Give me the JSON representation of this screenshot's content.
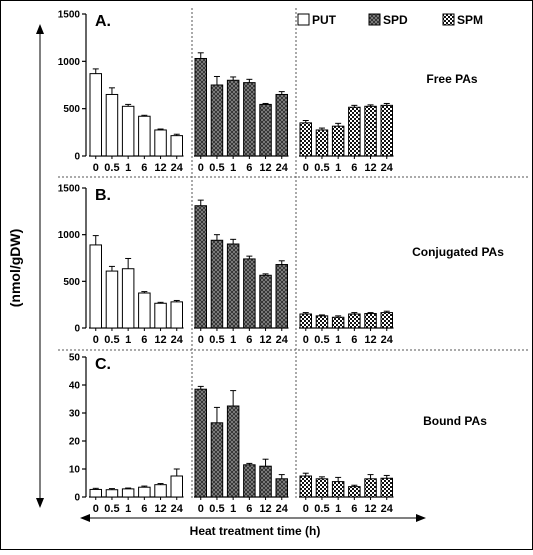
{
  "chart_data": {
    "type": "bar",
    "ylabel": "(nmol/gDW)",
    "xlabel": "Heat treatment time (h)",
    "categories": [
      "0",
      "0.5",
      "1",
      "6",
      "12",
      "24"
    ],
    "legend": {
      "placement": "top-right",
      "entries": [
        {
          "name": "PUT",
          "pattern": "white"
        },
        {
          "name": "SPD",
          "pattern": "grey-crosshatch"
        },
        {
          "name": "SPM",
          "pattern": "checkered"
        }
      ]
    },
    "panels": [
      {
        "letter": "A.",
        "label": "Free PAs",
        "ylim": [
          0,
          1500
        ],
        "yticks": [
          0,
          500,
          1000,
          1500
        ],
        "series": [
          {
            "name": "PUT",
            "values": [
              870,
              650,
              525,
              420,
              275,
              215
            ],
            "errors": [
              50,
              70,
              20,
              10,
              10,
              15
            ]
          },
          {
            "name": "SPD",
            "values": [
              1030,
              750,
              800,
              775,
              545,
              650
            ],
            "errors": [
              60,
              90,
              35,
              35,
              10,
              30
            ]
          },
          {
            "name": "SPM",
            "values": [
              350,
              275,
              315,
              515,
              525,
              535
            ],
            "errors": [
              25,
              20,
              30,
              20,
              15,
              20
            ]
          }
        ]
      },
      {
        "letter": "B.",
        "label": "Conjugated PAs",
        "ylim": [
          0,
          1500
        ],
        "yticks": [
          0,
          500,
          1000,
          1500
        ],
        "series": [
          {
            "name": "PUT",
            "values": [
              890,
              610,
              635,
              375,
              265,
              280
            ],
            "errors": [
              100,
              50,
              110,
              15,
              10,
              15
            ]
          },
          {
            "name": "SPD",
            "values": [
              1310,
              940,
              900,
              740,
              565,
              680
            ],
            "errors": [
              60,
              60,
              50,
              30,
              15,
              40
            ]
          },
          {
            "name": "SPM",
            "values": [
              150,
              130,
              115,
              150,
              155,
              165
            ],
            "errors": [
              15,
              10,
              15,
              15,
              10,
              15
            ]
          }
        ]
      },
      {
        "letter": "C.",
        "label": "Bound PAs",
        "ylim": [
          0,
          50
        ],
        "yticks": [
          0,
          10,
          20,
          30,
          40,
          50
        ],
        "series": [
          {
            "name": "PUT",
            "values": [
              2.7,
              2.6,
              2.9,
              3.5,
              4.4,
              7.5
            ],
            "errors": [
              0.4,
              0.4,
              0.3,
              0.4,
              0.4,
              2.5
            ]
          },
          {
            "name": "SPD",
            "values": [
              38.5,
              26.5,
              32.5,
              11.5,
              11.0,
              6.5
            ],
            "errors": [
              1.0,
              5.5,
              5.5,
              0.5,
              2.5,
              1.5
            ]
          },
          {
            "name": "SPM",
            "values": [
              7.5,
              6.5,
              5.5,
              3.7,
              6.5,
              6.7
            ],
            "errors": [
              1.0,
              0.7,
              1.5,
              0.5,
              1.5,
              1.0
            ]
          }
        ]
      }
    ]
  }
}
